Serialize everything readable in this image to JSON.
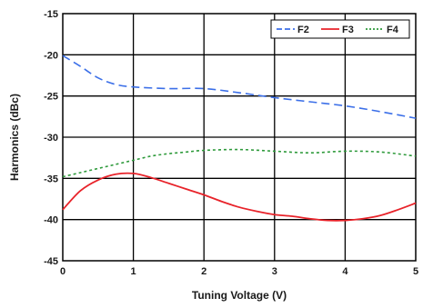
{
  "chart_data": {
    "type": "line",
    "title": "",
    "xlabel": "Tuning Voltage (V)",
    "ylabel": "Harmonics (dBc)",
    "xlim": [
      0,
      5
    ],
    "ylim": [
      -45,
      -15
    ],
    "xticks": [
      0,
      1,
      2,
      3,
      4,
      5
    ],
    "yticks": [
      -45,
      -40,
      -35,
      -30,
      -25,
      -20,
      -15
    ],
    "xtick_labels": [
      "0",
      "1",
      "2",
      "3",
      "4",
      "5"
    ],
    "ytick_labels": [
      "-45",
      "-40",
      "-35",
      "-30",
      "-25",
      "-20",
      "-15"
    ],
    "grid": true,
    "legend_position": "top-right",
    "series": [
      {
        "name": "F2",
        "color": "#3b6fe8",
        "style": "dashed",
        "x": [
          0,
          0.25,
          0.5,
          0.75,
          1,
          1.5,
          2,
          2.5,
          3,
          3.5,
          4,
          4.5,
          5
        ],
        "y": [
          -20.1,
          -21.4,
          -22.8,
          -23.6,
          -23.9,
          -24.1,
          -24.1,
          -24.6,
          -25.2,
          -25.7,
          -26.2,
          -26.9,
          -27.7
        ]
      },
      {
        "name": "F3",
        "color": "#e8232a",
        "style": "solid",
        "x": [
          0,
          0.25,
          0.5,
          0.75,
          1,
          1.25,
          1.5,
          1.75,
          2,
          2.25,
          2.5,
          2.75,
          3,
          3.25,
          3.5,
          3.75,
          4,
          4.25,
          4.5,
          4.75,
          5
        ],
        "y": [
          -38.8,
          -36.5,
          -35.2,
          -34.5,
          -34.4,
          -34.9,
          -35.6,
          -36.3,
          -37.0,
          -37.8,
          -38.5,
          -39.0,
          -39.4,
          -39.6,
          -39.9,
          -40.1,
          -40.1,
          -39.9,
          -39.5,
          -38.8,
          -38.0
        ]
      },
      {
        "name": "F4",
        "color": "#2e9a3b",
        "style": "dotted",
        "x": [
          0,
          0.25,
          0.5,
          0.75,
          1,
          1.25,
          1.5,
          1.75,
          2,
          2.5,
          3,
          3.5,
          4,
          4.5,
          5
        ],
        "y": [
          -34.8,
          -34.3,
          -33.8,
          -33.3,
          -32.8,
          -32.3,
          -32.0,
          -31.8,
          -31.6,
          -31.5,
          -31.7,
          -31.9,
          -31.7,
          -31.8,
          -32.3
        ]
      }
    ]
  }
}
